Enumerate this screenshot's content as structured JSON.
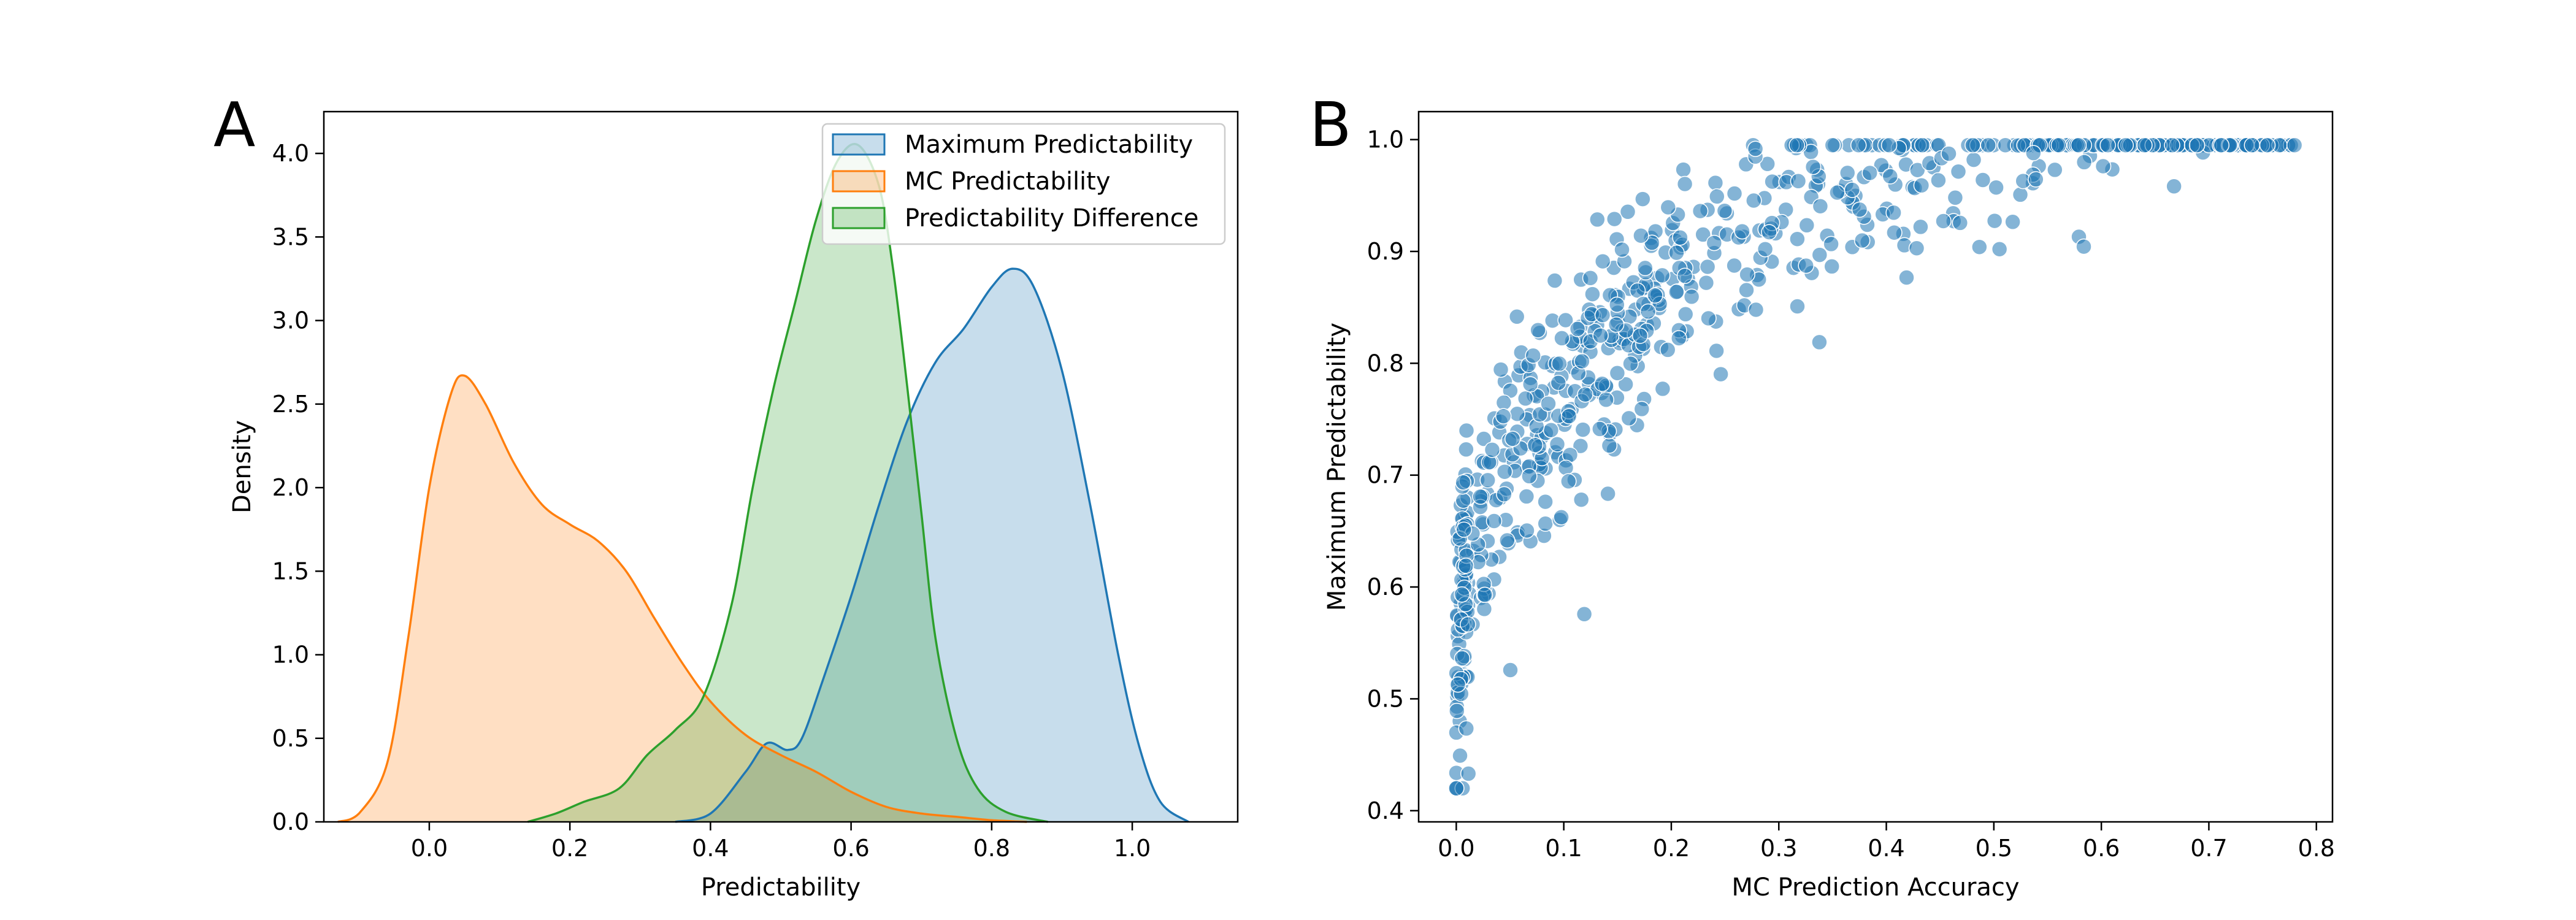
{
  "panels": {
    "a": "A",
    "b": "B"
  },
  "colors": {
    "maximum": "#1f77b4",
    "mc": "#ff7f0e",
    "difference": "#2ca02c"
  },
  "chart_data": [
    {
      "type": "area",
      "title": "",
      "xlabel": "Predictability",
      "ylabel": "Density",
      "xlim": [
        -0.15,
        1.15
      ],
      "ylim": [
        0,
        4.25
      ],
      "xticks": [
        "0.0",
        "0.2",
        "0.4",
        "0.6",
        "0.8",
        "1.0"
      ],
      "yticks": [
        "0.0",
        "0.5",
        "1.0",
        "1.5",
        "2.0",
        "2.5",
        "3.0",
        "3.5",
        "4.0"
      ],
      "legend_position": "top-right",
      "grid": false,
      "series": [
        {
          "name": "Maximum Predictability",
          "color_key": "maximum",
          "points": [
            [
              0.35,
              0.0
            ],
            [
              0.4,
              0.05
            ],
            [
              0.45,
              0.3
            ],
            [
              0.48,
              0.47
            ],
            [
              0.51,
              0.43
            ],
            [
              0.53,
              0.5
            ],
            [
              0.56,
              0.85
            ],
            [
              0.6,
              1.35
            ],
            [
              0.64,
              1.9
            ],
            [
              0.68,
              2.4
            ],
            [
              0.72,
              2.75
            ],
            [
              0.76,
              2.95
            ],
            [
              0.8,
              3.2
            ],
            [
              0.83,
              3.31
            ],
            [
              0.86,
              3.2
            ],
            [
              0.9,
              2.7
            ],
            [
              0.94,
              1.9
            ],
            [
              0.98,
              1.0
            ],
            [
              1.01,
              0.45
            ],
            [
              1.04,
              0.12
            ],
            [
              1.08,
              0.0
            ]
          ]
        },
        {
          "name": "MC Predictability",
          "color_key": "mc",
          "points": [
            [
              -0.13,
              0.0
            ],
            [
              -0.1,
              0.05
            ],
            [
              -0.06,
              0.35
            ],
            [
              -0.03,
              1.1
            ],
            [
              0.0,
              2.0
            ],
            [
              0.03,
              2.55
            ],
            [
              0.05,
              2.67
            ],
            [
              0.08,
              2.5
            ],
            [
              0.12,
              2.15
            ],
            [
              0.16,
              1.9
            ],
            [
              0.2,
              1.78
            ],
            [
              0.24,
              1.68
            ],
            [
              0.28,
              1.5
            ],
            [
              0.32,
              1.22
            ],
            [
              0.36,
              0.95
            ],
            [
              0.4,
              0.72
            ],
            [
              0.45,
              0.52
            ],
            [
              0.5,
              0.4
            ],
            [
              0.55,
              0.3
            ],
            [
              0.6,
              0.18
            ],
            [
              0.65,
              0.09
            ],
            [
              0.7,
              0.05
            ],
            [
              0.75,
              0.03
            ],
            [
              0.8,
              0.01
            ],
            [
              0.85,
              0.0
            ]
          ]
        },
        {
          "name": "Predictability Difference",
          "color_key": "difference",
          "points": [
            [
              0.14,
              0.0
            ],
            [
              0.18,
              0.05
            ],
            [
              0.22,
              0.12
            ],
            [
              0.27,
              0.2
            ],
            [
              0.31,
              0.4
            ],
            [
              0.35,
              0.55
            ],
            [
              0.39,
              0.75
            ],
            [
              0.43,
              1.3
            ],
            [
              0.46,
              2.0
            ],
            [
              0.49,
              2.6
            ],
            [
              0.52,
              3.1
            ],
            [
              0.55,
              3.6
            ],
            [
              0.58,
              3.95
            ],
            [
              0.61,
              4.05
            ],
            [
              0.64,
              3.8
            ],
            [
              0.66,
              3.3
            ],
            [
              0.68,
              2.6
            ],
            [
              0.7,
              1.85
            ],
            [
              0.72,
              1.1
            ],
            [
              0.75,
              0.5
            ],
            [
              0.78,
              0.2
            ],
            [
              0.82,
              0.06
            ],
            [
              0.88,
              0.0
            ]
          ]
        }
      ]
    },
    {
      "type": "scatter",
      "title": "",
      "xlabel": "MC Prediction Accuracy",
      "ylabel": "Maximum Predictability",
      "xlim": [
        -0.035,
        0.815
      ],
      "ylim": [
        0.39,
        1.025
      ],
      "xticks": [
        "0.0",
        "0.1",
        "0.2",
        "0.3",
        "0.4",
        "0.5",
        "0.6",
        "0.7",
        "0.8"
      ],
      "yticks": [
        "0.4",
        "0.5",
        "0.6",
        "0.7",
        "0.8",
        "0.9",
        "1.0"
      ],
      "grid": false,
      "color_key": "maximum",
      "trend": "y = 0.455 + 0.69*x^0.33",
      "n_points": 700,
      "x_range": [
        0.0,
        0.785
      ],
      "y_range": [
        0.42,
        0.995
      ]
    }
  ]
}
